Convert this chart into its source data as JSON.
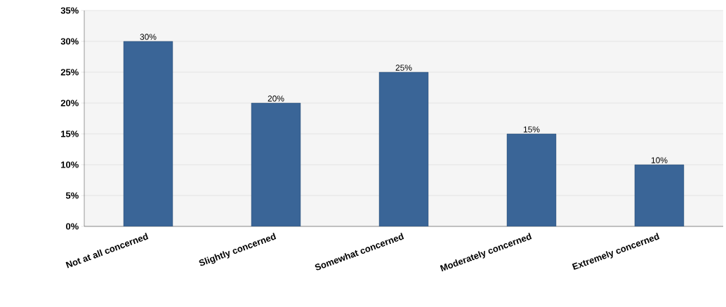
{
  "chart_data": {
    "type": "bar",
    "categories": [
      "Not at all concerned",
      "Slightly concerned",
      "Somewhat concerned",
      "Moderately concerned",
      "Extremely concerned"
    ],
    "values": [
      30,
      20,
      25,
      15,
      10
    ],
    "value_labels": [
      "30%",
      "20%",
      "25%",
      "15%",
      "10%"
    ],
    "color": "#3a6597",
    "ylim": [
      0,
      35
    ],
    "yticks": [
      {
        "value": 0,
        "label": "0%"
      },
      {
        "value": 5,
        "label": "5%"
      },
      {
        "value": 10,
        "label": "10%"
      },
      {
        "value": 15,
        "label": "15%"
      },
      {
        "value": 20,
        "label": "20%"
      },
      {
        "value": 25,
        "label": "25%"
      },
      {
        "value": 30,
        "label": "30%"
      },
      {
        "value": 35,
        "label": "35%"
      }
    ],
    "grid": "y"
  }
}
